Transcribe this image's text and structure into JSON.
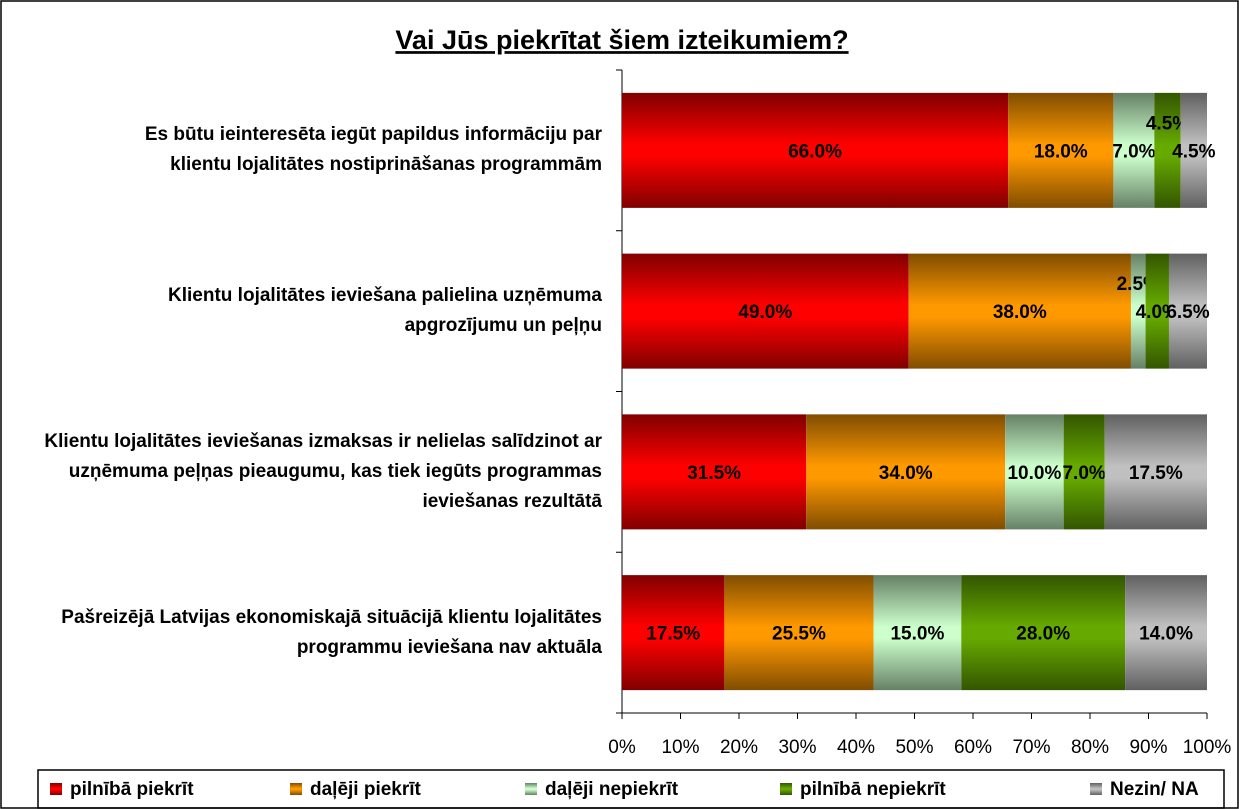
{
  "chart_data": {
    "type": "stacked-bar-horizontal",
    "title": "Vai Jūs piekrītat šiem izteikumiem?",
    "categories": [
      "Es būtu ieinteresēta iegūt papildus informāciju par klientu  lojalitātes nostiprināšanas programmām",
      "Klientu lojalitātes ieviešana palielina uzņēmuma apgrozījumu un peļņu",
      "Klientu lojalitātes ieviešanas izmaksas ir nelielas salīdzinot ar uzņēmuma peļņas pieaugumu, kas tiek iegūts programmas ieviešanas rezultātā",
      "Pašreizējā Latvijas ekonomiskajā situācijā klientu lojalitātes programmu ieviešana nav aktuāla"
    ],
    "series": [
      {
        "name": "pilnībā piekrīt",
        "color": "#ff0000",
        "values": [
          66,
          49,
          31.5,
          17.5
        ],
        "value_labels": [
          "66.0%",
          "49.0%",
          "31.5%",
          "17.5%"
        ]
      },
      {
        "name": "daļēji piekrīt",
        "color": "#ff9900",
        "values": [
          18,
          38,
          34,
          25.5
        ],
        "value_labels": [
          "18.0%",
          "38.0%",
          "34.0%",
          "25.5%"
        ]
      },
      {
        "name": "daļēji nepiekrīt",
        "color": "#ccffcc",
        "values": [
          7,
          2.5,
          10,
          15
        ],
        "value_labels": [
          "7.0%",
          "2.5%",
          "10.0%",
          "15.0%"
        ]
      },
      {
        "name": "pilnībā nepiekrīt",
        "color": "#66aa00",
        "values": [
          4.5,
          4,
          7,
          28
        ],
        "value_labels": [
          "4.5%",
          "4.0%",
          "7.0%",
          "28.0%"
        ]
      },
      {
        "name": "Nezin/ NA",
        "color": "#c0c0c0",
        "values": [
          4.5,
          6.5,
          17.5,
          14
        ],
        "value_labels": [
          "4.5%",
          "6.5%",
          "17.5%",
          "14.0%"
        ]
      }
    ],
    "xlim": [
      0,
      100
    ],
    "xticks": [
      {
        "value": 0,
        "label": "0%"
      },
      {
        "value": 10,
        "label": "10%"
      },
      {
        "value": 20,
        "label": "20%"
      },
      {
        "value": 30,
        "label": "30%"
      },
      {
        "value": 40,
        "label": "40%"
      },
      {
        "value": 50,
        "label": "50%"
      },
      {
        "value": 60,
        "label": "60%"
      },
      {
        "value": 70,
        "label": "70%"
      },
      {
        "value": 80,
        "label": "80%"
      },
      {
        "value": 90,
        "label": "90%"
      },
      {
        "value": 100,
        "label": "100%"
      }
    ],
    "legend": "bottom"
  }
}
